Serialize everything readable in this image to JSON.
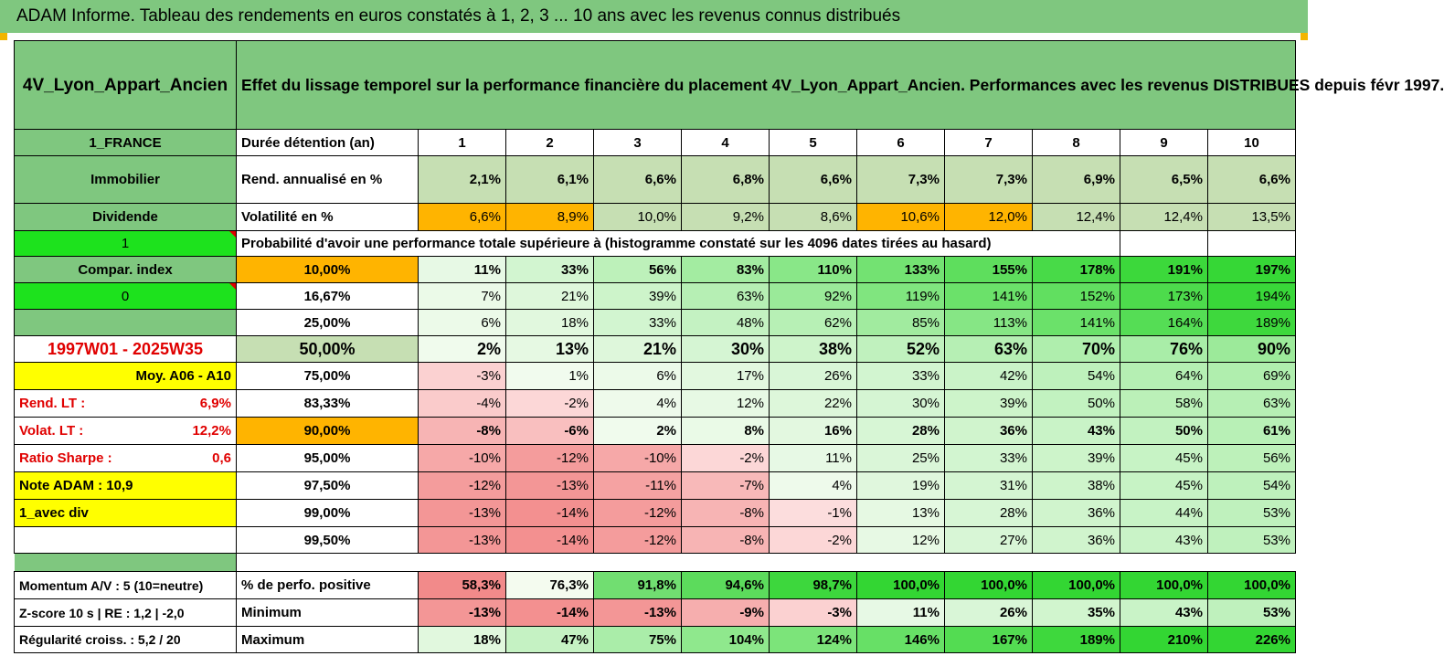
{
  "title": "ADAM Informe. Tableau des rendements en euros constatés à 1, 2, 3 ... 10 ans avec les revenus connus distribués",
  "header": {
    "product": "4V_Lyon_Appart_Ancien",
    "description": "Effet du lissage temporel sur la performance financière du placement 4V_Lyon_Appart_Ancien. Performances avec les revenus DISTRIBUES depuis févr 1997."
  },
  "left": {
    "country": "1_FRANCE",
    "category": "Immobilier",
    "dividend_label": "Dividende",
    "dividend_value": "1",
    "compar_label": "Compar. index",
    "compar_value": "0",
    "period": "1997W01 - 2025W35",
    "moy": "Moy. A06 - A10",
    "rend_lt_label": "Rend. LT :",
    "rend_lt_value": "6,9%",
    "volat_lt_label": "Volat. LT :",
    "volat_lt_value": "12,2%",
    "sharpe_label": "Ratio Sharpe :",
    "sharpe_value": "0,6",
    "note": "Note ADAM : 10,9",
    "avec_div": "1_avec div"
  },
  "years": {
    "label": "Durée détention (an)",
    "values": [
      "1",
      "2",
      "3",
      "4",
      "5",
      "6",
      "7",
      "8",
      "9",
      "10"
    ]
  },
  "rend": {
    "label": "Rend. annualisé en %",
    "values": [
      "2,1%",
      "6,1%",
      "6,6%",
      "6,8%",
      "6,6%",
      "7,3%",
      "7,3%",
      "6,9%",
      "6,5%",
      "6,6%"
    ]
  },
  "vol": {
    "label": "Volatilité en %",
    "values": [
      "6,6%",
      "8,9%",
      "10,0%",
      "9,2%",
      "8,6%",
      "10,6%",
      "12,0%",
      "12,4%",
      "12,4%",
      "13,5%"
    ]
  },
  "prob_title": "Probabilité d'avoir une performance totale supérieure à (histogramme constaté sur les 4096 dates tirées au hasard)",
  "prob_rows": [
    {
      "label": "10,00%",
      "values": [
        "11%",
        "33%",
        "56%",
        "83%",
        "110%",
        "133%",
        "155%",
        "178%",
        "191%",
        "197%"
      ]
    },
    {
      "label": "16,67%",
      "values": [
        "7%",
        "21%",
        "39%",
        "63%",
        "92%",
        "119%",
        "141%",
        "152%",
        "173%",
        "194%"
      ]
    },
    {
      "label": "25,00%",
      "values": [
        "6%",
        "18%",
        "33%",
        "48%",
        "62%",
        "85%",
        "113%",
        "141%",
        "164%",
        "189%"
      ]
    },
    {
      "label": "50,00%",
      "values": [
        "2%",
        "13%",
        "21%",
        "30%",
        "38%",
        "52%",
        "63%",
        "70%",
        "76%",
        "90%"
      ]
    },
    {
      "label": "75,00%",
      "values": [
        "-3%",
        "1%",
        "6%",
        "17%",
        "26%",
        "33%",
        "42%",
        "54%",
        "64%",
        "69%"
      ]
    },
    {
      "label": "83,33%",
      "values": [
        "-4%",
        "-2%",
        "4%",
        "12%",
        "22%",
        "30%",
        "39%",
        "50%",
        "58%",
        "63%"
      ]
    },
    {
      "label": "90,00%",
      "values": [
        "-8%",
        "-6%",
        "2%",
        "8%",
        "16%",
        "28%",
        "36%",
        "43%",
        "50%",
        "61%"
      ]
    },
    {
      "label": "95,00%",
      "values": [
        "-10%",
        "-12%",
        "-10%",
        "-2%",
        "11%",
        "25%",
        "33%",
        "39%",
        "45%",
        "56%"
      ]
    },
    {
      "label": "97,50%",
      "values": [
        "-12%",
        "-13%",
        "-11%",
        "-7%",
        "4%",
        "19%",
        "31%",
        "38%",
        "45%",
        "54%"
      ]
    },
    {
      "label": "99,00%",
      "values": [
        "-13%",
        "-14%",
        "-12%",
        "-8%",
        "-1%",
        "13%",
        "28%",
        "36%",
        "44%",
        "53%"
      ]
    },
    {
      "label": "99,50%",
      "values": [
        "-13%",
        "-14%",
        "-12%",
        "-8%",
        "-2%",
        "12%",
        "27%",
        "36%",
        "43%",
        "53%"
      ]
    }
  ],
  "footer": {
    "momentum": "Momentum A/V : 5 (10=neutre)",
    "zscore": "Z-score 10 s  |  RE : 1,2  |  -2,0",
    "regularite": "Régularité croiss. : 5,2 / 20",
    "pos": {
      "label": "% de perfo. positive",
      "values": [
        "58,3%",
        "76,3%",
        "91,8%",
        "94,6%",
        "98,7%",
        "100,0%",
        "100,0%",
        "100,0%",
        "100,0%",
        "100,0%"
      ]
    },
    "min": {
      "label": "Minimum",
      "values": [
        "-13%",
        "-14%",
        "-13%",
        "-9%",
        "-3%",
        "11%",
        "26%",
        "35%",
        "43%",
        "53%"
      ]
    },
    "max": {
      "label": "Maximum",
      "values": [
        "18%",
        "47%",
        "75%",
        "104%",
        "124%",
        "146%",
        "167%",
        "189%",
        "210%",
        "226%"
      ]
    }
  },
  "colors": {
    "header_green": "#7fc77f",
    "lime": "#1de21d",
    "orange": "#ffb400",
    "yellow": "#ffff00",
    "pale_green": "#c6dfb3",
    "red_text": "#e00000",
    "negative_scale": "#f28a8a",
    "positive_scale": "#33d633"
  }
}
